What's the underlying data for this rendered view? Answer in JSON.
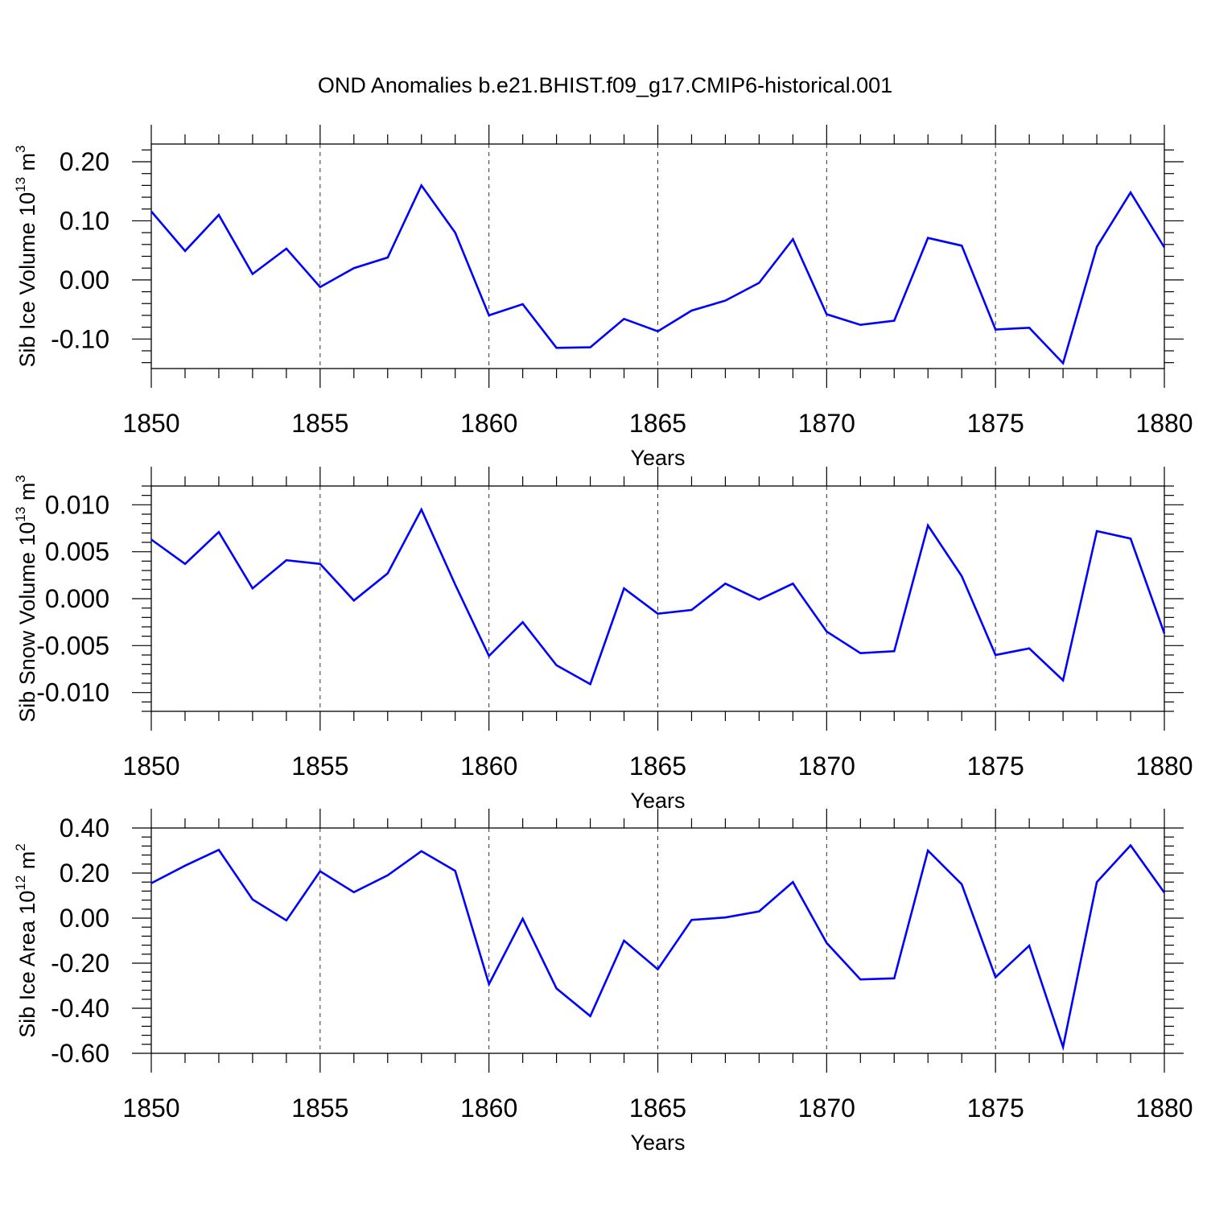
{
  "title": "OND Anomalies b.e21.BHIST.f09_g17.CMIP6-historical.001",
  "colors": {
    "line": "#0000ff",
    "axis": "#000000",
    "grid": "#000000"
  },
  "chart_data": [
    {
      "type": "line",
      "name": "ice-volume",
      "ylabel_main": "Sib Ice Volume 10",
      "ylabel_exp": "13",
      "ylabel_unit": " m",
      "ylabel_unit_exp": "3",
      "xlabel": "Years",
      "xlim": [
        1850,
        1880
      ],
      "ylim": [
        -0.15,
        0.23
      ],
      "xticks": [
        1850,
        1855,
        1860,
        1865,
        1870,
        1875,
        1880
      ],
      "xtick_labels": [
        "1850",
        "1855",
        "1860",
        "1865",
        "1870",
        "1875",
        "1880"
      ],
      "yticks": [
        0.2,
        0.1,
        0.0,
        -0.1
      ],
      "ytick_labels": [
        "0.20",
        "0.10",
        "0.00",
        "-0.10"
      ],
      "y_minor_step": 0.02,
      "x": [
        1850,
        1851,
        1852,
        1853,
        1854,
        1855,
        1856,
        1857,
        1858,
        1859,
        1860,
        1861,
        1862,
        1863,
        1864,
        1865,
        1866,
        1867,
        1868,
        1869,
        1870,
        1871,
        1872,
        1873,
        1874,
        1875,
        1876,
        1877,
        1878,
        1879,
        1880
      ],
      "values": [
        0.116,
        0.049,
        0.11,
        0.01,
        0.053,
        -0.012,
        0.02,
        0.038,
        0.16,
        0.08,
        -0.06,
        -0.041,
        -0.115,
        -0.114,
        -0.066,
        -0.087,
        -0.052,
        -0.035,
        -0.005,
        0.069,
        -0.058,
        -0.076,
        -0.069,
        0.071,
        0.058,
        -0.084,
        -0.081,
        -0.141,
        0.056,
        0.148,
        0.055
      ]
    },
    {
      "type": "line",
      "name": "snow-volume",
      "ylabel_main": "Sib Snow Volume 10",
      "ylabel_exp": "13",
      "ylabel_unit": " m",
      "ylabel_unit_exp": "3",
      "xlabel": "Years",
      "xlim": [
        1850,
        1880
      ],
      "ylim": [
        -0.012,
        0.012
      ],
      "xticks": [
        1850,
        1855,
        1860,
        1865,
        1870,
        1875,
        1880
      ],
      "xtick_labels": [
        "1850",
        "1855",
        "1860",
        "1865",
        "1870",
        "1875",
        "1880"
      ],
      "yticks": [
        0.01,
        0.005,
        0.0,
        -0.005,
        -0.01
      ],
      "ytick_labels": [
        "0.010",
        "0.005",
        "0.000",
        "-0.005",
        "-0.010"
      ],
      "y_minor_step": 0.001,
      "x": [
        1850,
        1851,
        1852,
        1853,
        1854,
        1855,
        1856,
        1857,
        1858,
        1859,
        1860,
        1861,
        1862,
        1863,
        1864,
        1865,
        1866,
        1867,
        1868,
        1869,
        1870,
        1871,
        1872,
        1873,
        1874,
        1875,
        1876,
        1877,
        1878,
        1879,
        1880
      ],
      "values": [
        0.0063,
        0.0037,
        0.0071,
        0.0011,
        0.0041,
        0.0037,
        -0.0002,
        0.0027,
        0.0095,
        0.0015,
        -0.0061,
        -0.0025,
        -0.0071,
        -0.0091,
        0.0011,
        -0.0016,
        -0.0012,
        0.0016,
        -0.0001,
        0.0016,
        -0.0035,
        -0.0058,
        -0.0056,
        0.0078,
        0.0024,
        -0.006,
        -0.0053,
        -0.0087,
        0.0072,
        0.0064,
        -0.0037
      ]
    },
    {
      "type": "line",
      "name": "ice-area",
      "ylabel_main": "Sib Ice Area 10",
      "ylabel_exp": "12",
      "ylabel_unit": " m",
      "ylabel_unit_exp": "2",
      "xlabel": "Years",
      "xlim": [
        1850,
        1880
      ],
      "ylim": [
        -0.6,
        0.4
      ],
      "xticks": [
        1850,
        1855,
        1860,
        1865,
        1870,
        1875,
        1880
      ],
      "xtick_labels": [
        "1850",
        "1855",
        "1860",
        "1865",
        "1870",
        "1875",
        "1880"
      ],
      "yticks": [
        0.4,
        0.2,
        0.0,
        -0.2,
        -0.4,
        -0.6
      ],
      "ytick_labels": [
        "0.40",
        "0.20",
        "0.00",
        "-0.20",
        "-0.40",
        "-0.60"
      ],
      "y_minor_step": 0.04,
      "x": [
        1850,
        1851,
        1852,
        1853,
        1854,
        1855,
        1856,
        1857,
        1858,
        1859,
        1860,
        1861,
        1862,
        1863,
        1864,
        1865,
        1866,
        1867,
        1868,
        1869,
        1870,
        1871,
        1872,
        1873,
        1874,
        1875,
        1876,
        1877,
        1878,
        1879,
        1880
      ],
      "values": [
        0.155,
        0.233,
        0.303,
        0.083,
        -0.01,
        0.208,
        0.115,
        0.19,
        0.297,
        0.21,
        -0.293,
        -0.003,
        -0.312,
        -0.435,
        -0.1,
        -0.227,
        -0.008,
        0.003,
        0.03,
        0.16,
        -0.11,
        -0.272,
        -0.267,
        0.3,
        0.15,
        -0.262,
        -0.122,
        -0.572,
        0.16,
        0.323,
        0.113
      ]
    }
  ]
}
